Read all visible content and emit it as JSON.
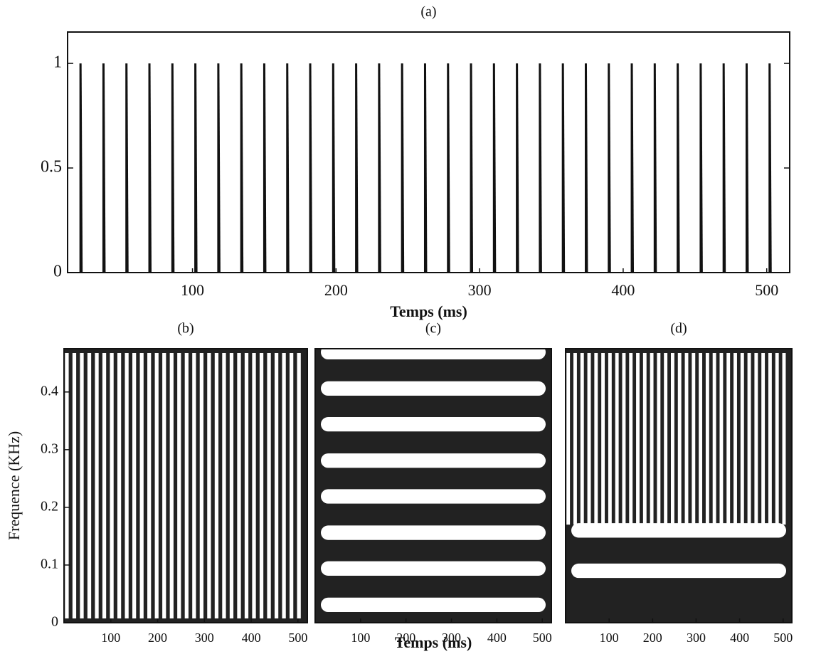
{
  "chart_data": [
    {
      "type": "pulse",
      "title": "(a)",
      "xlabel": "Temps (ms)",
      "color": "#111111",
      "x": [
        22,
        38,
        54,
        70,
        86,
        102,
        118,
        134,
        150,
        166,
        182,
        198,
        214,
        230,
        246,
        262,
        278,
        294,
        310,
        326,
        342,
        358,
        374,
        390,
        406,
        422,
        438,
        454,
        470,
        486,
        502
      ],
      "values": [
        1,
        1,
        1,
        1,
        1,
        1,
        1,
        1,
        1,
        1,
        1,
        1,
        1,
        1,
        1,
        1,
        1,
        1,
        1,
        1,
        1,
        1,
        1,
        1,
        1,
        1,
        1,
        1,
        1,
        1,
        1
      ],
      "xlim": [
        13,
        516
      ],
      "ylim": [
        0,
        1.15
      ],
      "xticks": [
        100,
        200,
        300,
        400,
        500
      ],
      "yticks": [
        0,
        0.5,
        1
      ]
    },
    {
      "type": "spectrogram",
      "title": "(b)",
      "ylabel": "Frequence (KHz)",
      "color": "#222222",
      "x": [
        6,
        22,
        38,
        54,
        70,
        86,
        102,
        118,
        134,
        150,
        166,
        182,
        198,
        214,
        230,
        246,
        262,
        278,
        294,
        310,
        326,
        342,
        358,
        374,
        390,
        406,
        422,
        438,
        454,
        470,
        486,
        502
      ],
      "xlim": [
        0,
        520
      ],
      "ylim": [
        0,
        0.475
      ],
      "xticks": [
        100,
        200,
        300,
        400,
        500
      ],
      "yticks": [
        0,
        0.1,
        0.2,
        0.3,
        0.4
      ]
    },
    {
      "type": "spectrogram",
      "title": "(c)",
      "xlabel": "Temps (ms)",
      "color": "#222222",
      "bands": [
        0.031,
        0.094,
        0.156,
        0.219,
        0.281,
        0.344,
        0.406,
        0.469
      ],
      "xlim": [
        0,
        520
      ],
      "ylim": [
        0,
        0.475
      ],
      "xticks": [
        100,
        200,
        300,
        400,
        500
      ]
    },
    {
      "type": "spectrogram",
      "title": "(d)",
      "color": "#222222",
      "x": [
        6,
        22,
        38,
        54,
        70,
        86,
        102,
        118,
        134,
        150,
        166,
        182,
        198,
        214,
        230,
        246,
        262,
        278,
        294,
        310,
        326,
        342,
        358,
        374,
        390,
        406,
        422,
        438,
        454,
        470,
        486,
        502
      ],
      "stripe_from": 0.17,
      "bands": [
        0.09,
        0.16
      ],
      "xlim": [
        0,
        520
      ],
      "ylim": [
        0,
        0.475
      ],
      "xticks": [
        100,
        200,
        300,
        400,
        500
      ]
    }
  ]
}
